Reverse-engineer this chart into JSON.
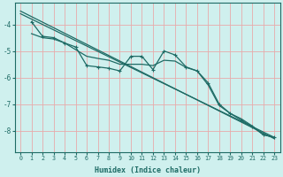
{
  "xlabel": "Humidex (Indice chaleur)",
  "ylabel": "",
  "bg_color": "#cff0ee",
  "line_color": "#1e6b65",
  "grid_color": "#e8aaaa",
  "xlim": [
    -0.5,
    23.5
  ],
  "ylim": [
    -8.8,
    -3.2
  ],
  "yticks": [
    -8,
    -7,
    -6,
    -5,
    -4
  ],
  "xticks": [
    0,
    1,
    2,
    3,
    4,
    5,
    6,
    7,
    8,
    9,
    10,
    11,
    12,
    13,
    14,
    15,
    16,
    17,
    18,
    19,
    20,
    21,
    22,
    23
  ],
  "series_straight1": [
    0,
    -3.5,
    23,
    -8.3
  ],
  "series_straight2": [
    0,
    -3.6,
    23,
    -8.25
  ],
  "series_jagged": [
    null,
    -3.9,
    -4.45,
    -4.5,
    -4.7,
    -4.85,
    -5.55,
    -5.6,
    -5.65,
    -5.75,
    -5.2,
    -5.2,
    -5.7,
    -5.0,
    -5.15,
    -5.6,
    -5.75,
    -6.2,
    -7.0,
    -7.35,
    -7.6,
    -7.85,
    -8.15,
    -8.25
  ],
  "series_smooth": [
    null,
    -4.35,
    -4.5,
    -4.55,
    -4.7,
    -4.95,
    -5.2,
    -5.28,
    -5.35,
    -5.5,
    -5.5,
    -5.5,
    -5.55,
    -5.35,
    -5.38,
    -5.62,
    -5.75,
    -6.28,
    -7.05,
    -7.35,
    -7.55,
    -7.82,
    -8.15,
    -8.25
  ]
}
